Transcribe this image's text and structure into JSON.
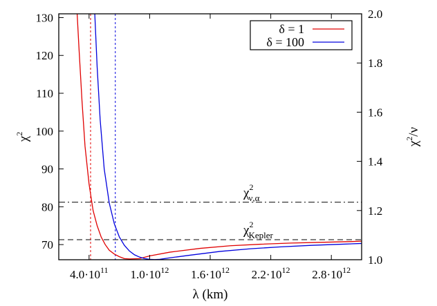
{
  "chart_data": {
    "type": "line",
    "xlabel": "λ (km)",
    "ylabel_left": "χ²",
    "ylabel_right": "χ²/ν",
    "xlim": [
      100000000000,
      3100000000000
    ],
    "ylim_left": [
      66,
      131
    ],
    "ylim_right": [
      1.0,
      2.0
    ],
    "x_ticks": [
      {
        "value": 400000000000,
        "mantissa": "4.0·10",
        "exp": "11"
      },
      {
        "value": 1000000000000,
        "mantissa": "1.0·10",
        "exp": "12"
      },
      {
        "value": 1600000000000,
        "mantissa": "1.6·10",
        "exp": "12"
      },
      {
        "value": 2200000000000,
        "mantissa": "2.2·10",
        "exp": "12"
      },
      {
        "value": 2800000000000,
        "mantissa": "2.8·10",
        "exp": "12"
      }
    ],
    "y_ticks_left": [
      70,
      80,
      90,
      100,
      110,
      120,
      130
    ],
    "y_ticks_right": [
      "1.0",
      "1.2",
      "1.4",
      "1.6",
      "1.8",
      "2.0"
    ],
    "legend_position": "top-right",
    "series": [
      {
        "name": "δ = 1",
        "color": "#e00000",
        "x": [
          280000000000,
          300000000000,
          330000000000,
          360000000000,
          400000000000,
          440000000000,
          480000000000,
          520000000000,
          560000000000,
          600000000000,
          650000000000,
          700000000000,
          750000000000,
          800000000000,
          900000000000,
          1000000000000,
          1200000000000,
          1500000000000,
          1800000000000,
          2100000000000,
          2400000000000,
          2700000000000,
          3000000000000,
          3100000000000
        ],
        "y": [
          132,
          122,
          108,
          96,
          86,
          79,
          75,
          72,
          70,
          68.5,
          67.5,
          66.8,
          66.3,
          66.2,
          66.3,
          67.0,
          68.0,
          69.0,
          69.7,
          70.1,
          70.4,
          70.6,
          70.8,
          70.9
        ]
      },
      {
        "name": "δ = 100",
        "color": "#0000dd",
        "x": [
          455000000000,
          480000000000,
          510000000000,
          550000000000,
          600000000000,
          650000000000,
          700000000000,
          750000000000,
          800000000000,
          850000000000,
          900000000000,
          950000000000,
          1000000000000,
          1050000000000,
          1100000000000,
          1200000000000,
          1400000000000,
          1700000000000,
          2000000000000,
          2300000000000,
          2600000000000,
          2900000000000,
          3100000000000
        ],
        "y": [
          132,
          117,
          103,
          90,
          81,
          75.5,
          72,
          69.8,
          68.3,
          67.3,
          66.7,
          66.3,
          66.1,
          66.05,
          66.1,
          66.5,
          67.2,
          68.2,
          68.9,
          69.4,
          69.8,
          70.1,
          70.3
        ]
      }
    ],
    "reference_lines": [
      {
        "name": "chi-nu-alpha",
        "y": 81.2,
        "style": "dash-dot",
        "label_main": "χ",
        "label_sup": "2",
        "label_sub": "ν,α"
      },
      {
        "name": "chi-kepler",
        "y": 71.3,
        "style": "dashed",
        "label_main": "χ",
        "label_sup": "2",
        "label_sub": "Kepler"
      }
    ],
    "vertical_markers": [
      {
        "name": "delta-1-crossing",
        "x": 415000000000,
        "color": "#e00000"
      },
      {
        "name": "delta-100-crossing",
        "x": 660000000000,
        "color": "#0000dd"
      }
    ]
  }
}
